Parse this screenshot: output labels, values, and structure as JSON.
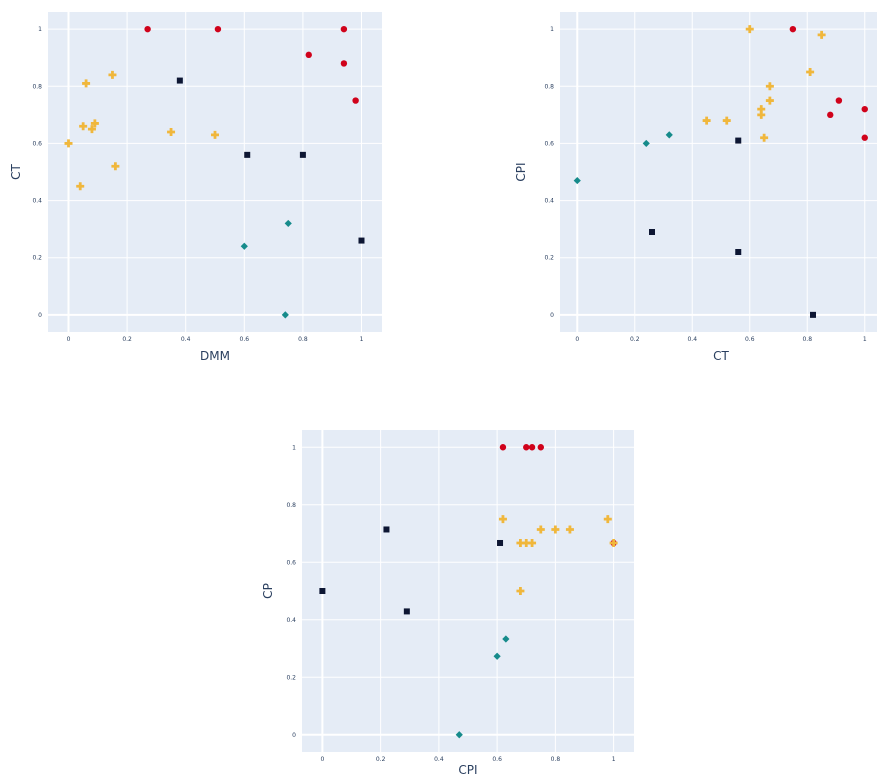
{
  "colors": {
    "plot_background": "#e5ecf6",
    "grid": "#ffffff",
    "text": "#2a3f5f",
    "red_circle": "#d0021b",
    "orange_cross": "#f0b73c",
    "navy_square": "#0d1633",
    "teal_diamond": "#168b8b"
  },
  "chart_data": [
    {
      "type": "scatter",
      "title": "",
      "xlabel": "DMM",
      "ylabel": "CT",
      "xlim": [
        -0.07,
        1.07
      ],
      "ylim": [
        -0.06,
        1.06
      ],
      "grid": true,
      "ticks": [
        "0",
        "0.2",
        "0.4",
        "0.6",
        "0.8",
        "1"
      ],
      "series": [
        {
          "marker": "circle",
          "color": "#d0021b",
          "x": [
            0.27,
            0.51,
            0.82,
            0.94,
            0.94,
            0.98
          ],
          "y": [
            1.0,
            1.0,
            0.91,
            1.0,
            0.88,
            0.75
          ]
        },
        {
          "marker": "cross",
          "color": "#f0b73c",
          "x": [
            0.0,
            0.04,
            0.05,
            0.06,
            0.08,
            0.09,
            0.15,
            0.16,
            0.35,
            0.5
          ],
          "y": [
            0.6,
            0.45,
            0.66,
            0.81,
            0.65,
            0.67,
            0.84,
            0.52,
            0.64,
            0.63
          ]
        },
        {
          "marker": "square",
          "color": "#0d1633",
          "x": [
            0.38,
            0.61,
            0.8,
            1.0
          ],
          "y": [
            0.82,
            0.56,
            0.56,
            0.26
          ]
        },
        {
          "marker": "diamond",
          "color": "#168b8b",
          "x": [
            0.6,
            0.74,
            0.75
          ],
          "y": [
            0.24,
            0.0,
            0.32
          ]
        }
      ]
    },
    {
      "type": "scatter",
      "title": "",
      "xlabel": "CT",
      "ylabel": "CPI",
      "xlim": [
        -0.06,
        1.06
      ],
      "ylim": [
        -0.06,
        1.06
      ],
      "grid": true,
      "ticks": [
        "0",
        "0.2",
        "0.4",
        "0.6",
        "0.8",
        "1"
      ],
      "series": [
        {
          "marker": "circle",
          "color": "#d0021b",
          "x": [
            0.75,
            0.88,
            0.91,
            1.0,
            1.0
          ],
          "y": [
            1.0,
            0.7,
            0.75,
            0.72,
            0.62
          ]
        },
        {
          "marker": "cross",
          "color": "#f0b73c",
          "x": [
            0.45,
            0.52,
            0.6,
            0.64,
            0.64,
            0.65,
            0.67,
            0.67,
            0.81,
            0.85
          ],
          "y": [
            0.68,
            0.68,
            1.0,
            0.72,
            0.7,
            0.62,
            0.8,
            0.75,
            0.85,
            0.98
          ]
        },
        {
          "marker": "square",
          "color": "#0d1633",
          "x": [
            0.26,
            0.56,
            0.56,
            0.82
          ],
          "y": [
            0.29,
            0.61,
            0.22,
            0.0
          ]
        },
        {
          "marker": "diamond",
          "color": "#168b8b",
          "x": [
            0.0,
            0.24,
            0.32
          ],
          "y": [
            0.47,
            0.6,
            0.63
          ]
        }
      ]
    },
    {
      "type": "scatter",
      "title": "",
      "xlabel": "CPI",
      "ylabel": "CP",
      "xlim": [
        -0.07,
        1.07
      ],
      "ylim": [
        -0.06,
        1.06
      ],
      "grid": true,
      "ticks": [
        "0",
        "0.2",
        "0.4",
        "0.6",
        "0.8",
        "1"
      ],
      "series": [
        {
          "marker": "circle",
          "color": "#d0021b",
          "x": [
            0.62,
            0.7,
            0.72,
            0.75,
            1.0
          ],
          "y": [
            1.0,
            1.0,
            1.0,
            1.0,
            0.667
          ]
        },
        {
          "marker": "cross",
          "color": "#f0b73c",
          "x": [
            0.62,
            0.68,
            0.68,
            0.7,
            0.72,
            0.75,
            0.8,
            0.85,
            0.98,
            1.0
          ],
          "y": [
            0.75,
            0.5,
            0.667,
            0.667,
            0.667,
            0.714,
            0.714,
            0.714,
            0.75,
            0.667
          ]
        },
        {
          "marker": "square",
          "color": "#0d1633",
          "x": [
            0.0,
            0.22,
            0.29,
            0.61
          ],
          "y": [
            0.5,
            0.714,
            0.429,
            0.667
          ]
        },
        {
          "marker": "diamond",
          "color": "#168b8b",
          "x": [
            0.47,
            0.6,
            0.63
          ],
          "y": [
            0.0,
            0.273,
            0.333
          ]
        }
      ]
    }
  ]
}
